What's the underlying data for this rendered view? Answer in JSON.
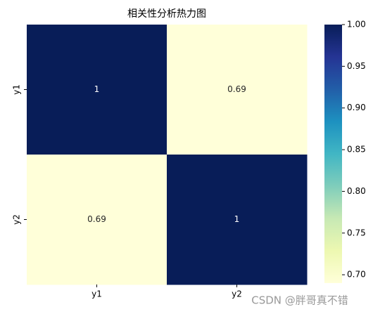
{
  "chart_data": {
    "type": "heatmap",
    "title": "相关性分析热力图",
    "x_categories": [
      "y1",
      "y2"
    ],
    "y_categories": [
      "y1",
      "y2"
    ],
    "values": [
      [
        1,
        0.69
      ],
      [
        0.69,
        1
      ]
    ],
    "vlim": [
      0.69,
      1.0
    ],
    "colorbar_ticks": [
      {
        "value": 0.7,
        "label": "0.70"
      },
      {
        "value": 0.75,
        "label": "0.75"
      },
      {
        "value": 0.8,
        "label": "0.80"
      },
      {
        "value": 0.85,
        "label": "0.85"
      },
      {
        "value": 0.9,
        "label": "0.90"
      },
      {
        "value": 0.95,
        "label": "0.95"
      },
      {
        "value": 1.0,
        "label": "1.00"
      }
    ],
    "colorscale": [
      "#ffffd9",
      "#edf8b1",
      "#c7e9b4",
      "#7fcdbb",
      "#41b6c4",
      "#1d91c0",
      "#225ea8",
      "#253494",
      "#081d58"
    ],
    "watermark": "CSDN @胖哥真不错"
  }
}
